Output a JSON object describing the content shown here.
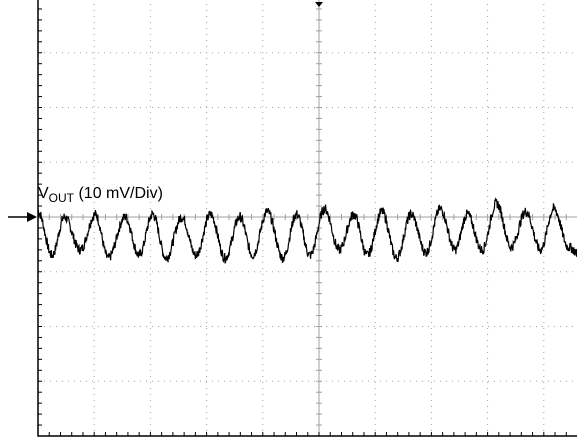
{
  "colors": {
    "frame": "#000000",
    "grid": "#a0a0a0",
    "trace": "#000000",
    "background": "#ffffff"
  },
  "chart_data": {
    "type": "line",
    "title": "",
    "xlabel": "",
    "ylabel": "",
    "grid": true,
    "legend": "none",
    "xlim": [
      0,
      10
    ],
    "ylim": [
      -4,
      4
    ],
    "x_divisions": 10,
    "y_divisions": 8,
    "markers": {
      "ground_arrow_y": 0,
      "trigger_marker_x": 5
    },
    "series": [
      {
        "label_main": "V",
        "label_sub": "OUT",
        "label_rest": " (10 mV/Div)",
        "x": [
          0,
          0.25,
          0.47,
          0.75,
          1.02,
          1.25,
          1.55,
          1.8,
          2.04,
          2.28,
          2.56,
          2.81,
          3.07,
          3.33,
          3.59,
          3.82,
          4.08,
          4.36,
          4.6,
          4.84,
          5.1,
          5.36,
          5.62,
          5.86,
          6.12,
          6.38,
          6.64,
          6.9,
          7.16,
          7.42,
          7.64,
          7.9,
          8.16,
          8.42,
          8.68,
          8.94,
          9.18,
          9.44,
          9.7,
          9.96,
          10
        ],
        "y": [
          0.1,
          -0.7,
          0.0,
          -0.6,
          0.05,
          -0.75,
          0.0,
          -0.7,
          0.05,
          -0.75,
          0.0,
          -0.7,
          0.05,
          -0.75,
          0.0,
          -0.7,
          0.1,
          -0.75,
          0.05,
          -0.7,
          0.15,
          -0.6,
          0.05,
          -0.7,
          0.1,
          -0.75,
          0.05,
          -0.65,
          0.15,
          -0.6,
          0.05,
          -0.6,
          0.25,
          -0.55,
          0.1,
          -0.6,
          0.15,
          -0.55,
          -0.75,
          0.1,
          0.0
        ]
      }
    ]
  }
}
